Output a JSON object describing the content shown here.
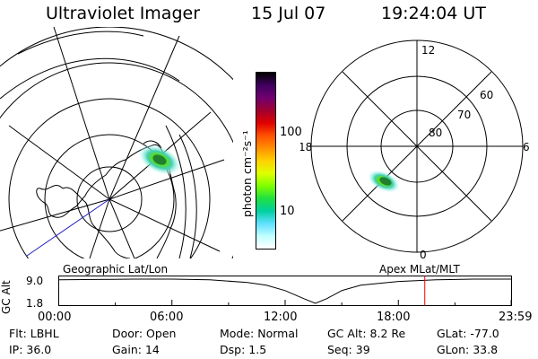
{
  "header": {
    "instrument": "Ultraviolet Imager",
    "date": "15 Jul 07",
    "time": "19:24:04 UT"
  },
  "left_panel": {
    "caption": "Geographic Lat/Lon"
  },
  "right_panel": {
    "caption": "Apex MLat/MLT",
    "mlt_labels": [
      "12",
      "18",
      "6",
      "0"
    ],
    "mlat_labels": [
      "60",
      "70",
      "80"
    ]
  },
  "colorbar": {
    "unit_label": "photon cm⁻²s⁻¹",
    "scale": "log",
    "ticks": [
      "100",
      "10"
    ],
    "colors": [
      "#000000",
      "#400060",
      "#700070",
      "#a00030",
      "#e00000",
      "#ff5000",
      "#ff9000",
      "#ffd000",
      "#e0ff00",
      "#80ff00",
      "#20e040",
      "#00d0a0",
      "#60e0ff",
      "#c0ffff",
      "#ffffff"
    ]
  },
  "chart_data": {
    "type": "line",
    "title": "",
    "ylabel": "GC Alt",
    "y_ticks": [
      "9.0",
      "1.8"
    ],
    "x_ticks": [
      "00:00",
      "06:00",
      "12:00",
      "18:00",
      "23:59"
    ],
    "x_range_hours": [
      0,
      24
    ],
    "y_range_re": [
      1.8,
      9.0
    ],
    "series": [
      {
        "x_hours": [
          0,
          2,
          4,
          6,
          8,
          10,
          11,
          12,
          13,
          13.6,
          14.2,
          15,
          16,
          18,
          20,
          22,
          23.98
        ],
        "y_re": [
          8.8,
          8.9,
          9.0,
          9.0,
          8.8,
          8.0,
          7.2,
          5.6,
          3.2,
          1.8,
          3.2,
          5.6,
          7.2,
          8.3,
          8.8,
          9.0,
          9.0
        ]
      }
    ],
    "current_time_hours": 19.4,
    "current_time_color": "#ff0000"
  },
  "status": {
    "row1": [
      {
        "key": "Flt:",
        "value": "LBHL"
      },
      {
        "key": "Door:",
        "value": "Open"
      },
      {
        "key": "Mode:",
        "value": "Normal"
      },
      {
        "key": "GC Alt:",
        "value": "8.2 Re"
      },
      {
        "key": "GLat:",
        "value": "-77.0"
      }
    ],
    "row2": [
      {
        "key": "IP:",
        "value": "36.0"
      },
      {
        "key": "Gain:",
        "value": "14"
      },
      {
        "key": "Dsp:",
        "value": "1.5"
      },
      {
        "key": "Seq:",
        "value": "39"
      },
      {
        "key": "GLon:",
        "value": "33.8"
      }
    ]
  }
}
